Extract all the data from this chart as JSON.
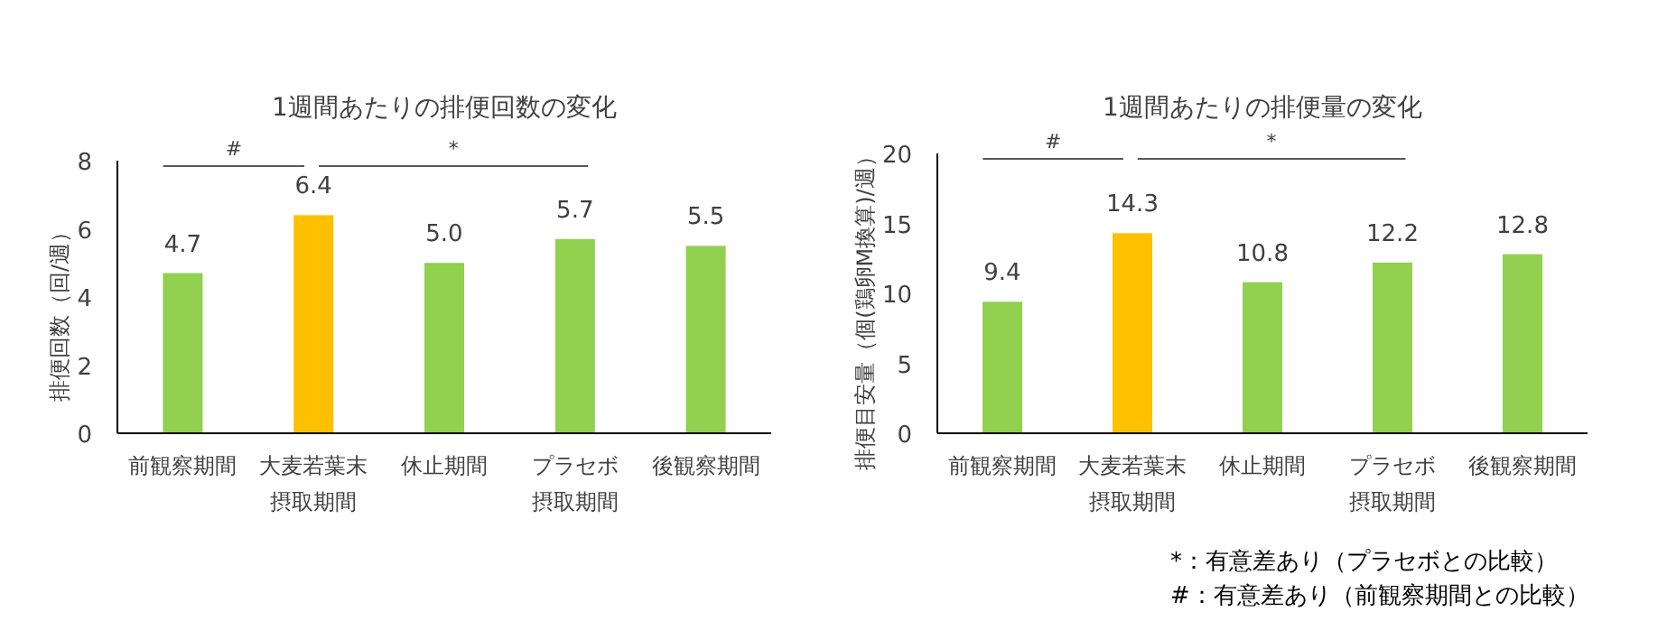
{
  "chart_data": [
    {
      "type": "bar",
      "title": "1週間あたりの排便回数の変化",
      "ylabel": "排便回数（回/週）",
      "categories": [
        "前観察期間",
        "大麦若葉末摂取期間",
        "休止期間",
        "プラセボ摂取期間",
        "後観察期間"
      ],
      "values": [
        4.7,
        6.4,
        5.0,
        5.7,
        5.5
      ],
      "colors": [
        "#92d050",
        "#ffc000",
        "#92d050",
        "#92d050",
        "#92d050"
      ],
      "value_labels": [
        "4.7",
        "6.4",
        "5.0",
        "5.7",
        "5.5"
      ],
      "ylim": [
        0,
        8
      ],
      "yticks": [
        0,
        2,
        4,
        6,
        8
      ],
      "grid": false,
      "annotations": [
        "#",
        "*"
      ]
    },
    {
      "type": "bar",
      "title": "1週間あたりの排便量の変化",
      "ylabel": "排便目安量（個(鶏卵M換算)/週）",
      "categories": [
        "前観察期間",
        "大麦若葉末摂取期間",
        "休止期間",
        "プラセボ摂取期間",
        "後観察期間"
      ],
      "values": [
        9.4,
        14.3,
        10.8,
        12.2,
        12.8
      ],
      "colors": [
        "#92d050",
        "#ffc000",
        "#92d050",
        "#92d050",
        "#92d050"
      ],
      "value_labels": [
        "9.4",
        "14.3",
        "10.8",
        "12.2",
        "12.8"
      ],
      "ylim": [
        0,
        20
      ],
      "yticks": [
        0,
        5,
        10,
        15,
        20
      ],
      "grid": false,
      "annotations": [
        "#",
        "*",
        "*：有意差あり（プラセボとの比較）",
        "#：有意差あり（前観察期間との比較）"
      ]
    }
  ]
}
